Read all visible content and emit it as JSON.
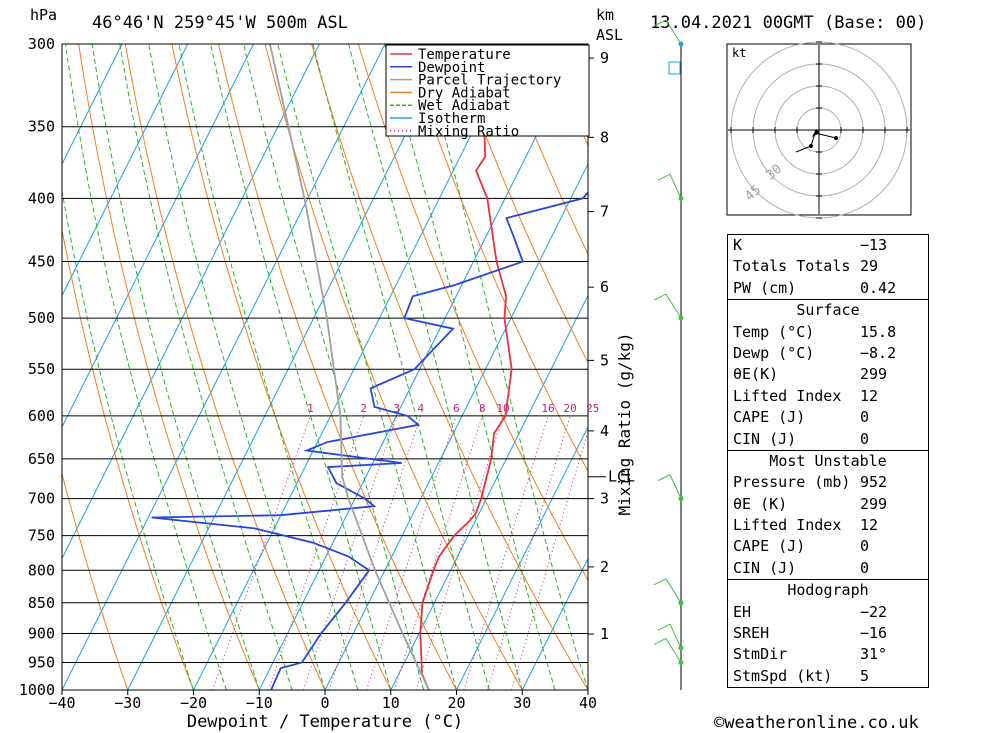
{
  "header": {
    "pressure_unit": "hPa",
    "location": "46°46'N  259°45'W  500m  ASL",
    "km_label": "km",
    "asl_label": "ASL",
    "datetime": "13.04.2021  00GMT  (Base: 00)"
  },
  "footer": {
    "copyright": "©weatheronline.co.uk"
  },
  "chart_data": {
    "type": "line",
    "title": "",
    "xlabel": "Dewpoint / Temperature (°C)",
    "ylabel": "hPa",
    "secondary_ylabel": "Mixing Ratio (g/kg)",
    "x_ticks": [
      "-40",
      "-30",
      "-20",
      "-10",
      "0",
      "10",
      "20",
      "30",
      "40"
    ],
    "xlim": [
      -40,
      40
    ],
    "pressure_levels": [
      300,
      350,
      400,
      450,
      500,
      550,
      600,
      650,
      700,
      750,
      800,
      850,
      900,
      950,
      1000
    ],
    "ylim": [
      1000,
      300
    ],
    "y_scale": "log",
    "height_km_ticks": [
      {
        "km": "1",
        "p": 901
      },
      {
        "km": "2",
        "p": 795
      },
      {
        "km": "3",
        "p": 700
      },
      {
        "km": "4",
        "p": 617
      },
      {
        "km": "5",
        "p": 541
      },
      {
        "km": "6",
        "p": 472
      },
      {
        "km": "7",
        "p": 410
      },
      {
        "km": "8",
        "p": 357
      },
      {
        "km": "9",
        "p": 308
      }
    ],
    "lcl_label": "LCL",
    "lcl_pressure": 672,
    "mixing_ratio_labels": [
      "1",
      "2",
      "3",
      "4",
      "6",
      "8",
      "10",
      "16",
      "20",
      "25"
    ],
    "legend": [
      {
        "name": "Temperature",
        "color": "#e8323c",
        "style": "solid"
      },
      {
        "name": "Dewpoint",
        "color": "#2846dc",
        "style": "solid"
      },
      {
        "name": "Parcel Trajectory",
        "color": "#a0a0a0",
        "style": "solid"
      },
      {
        "name": "Dry Adiabat",
        "color": "#f08020",
        "style": "solid"
      },
      {
        "name": "Wet Adiabat",
        "color": "#28b428",
        "style": "dashed"
      },
      {
        "name": "Isotherm",
        "color": "#1ea0e6",
        "style": "solid"
      },
      {
        "name": "Mixing Ratio",
        "color": "#c81e82",
        "style": "dotted"
      }
    ],
    "legend_position": "top-right",
    "series": [
      {
        "name": "Temperature",
        "color": "#e8323c",
        "points": [
          [
            1000,
            15.8
          ],
          [
            970,
            13.5
          ],
          [
            950,
            12.6
          ],
          [
            900,
            10.2
          ],
          [
            850,
            8.2
          ],
          [
            800,
            7.4
          ],
          [
            780,
            7.2
          ],
          [
            750,
            7.9
          ],
          [
            730,
            9.1
          ],
          [
            720,
            9.5
          ],
          [
            700,
            9.2
          ],
          [
            650,
            7.7
          ],
          [
            620,
            6.2
          ],
          [
            600,
            6.6
          ],
          [
            550,
            4.0
          ],
          [
            500,
            -1.0
          ],
          [
            480,
            -2.4
          ],
          [
            450,
            -6.5
          ],
          [
            400,
            -12.7
          ],
          [
            380,
            -16.5
          ],
          [
            370,
            -16.2
          ],
          [
            350,
            -18.6
          ],
          [
            320,
            -23.6
          ],
          [
            300,
            -27.0
          ]
        ]
      },
      {
        "name": "Dewpoint",
        "color": "#2846dc",
        "points": [
          [
            1000,
            -8.2
          ],
          [
            960,
            -8.4
          ],
          [
            950,
            -5.6
          ],
          [
            900,
            -4.9
          ],
          [
            850,
            -3.5
          ],
          [
            800,
            -2.4
          ],
          [
            780,
            -6.5
          ],
          [
            760,
            -13.0
          ],
          [
            740,
            -23.0
          ],
          [
            725,
            -39.5
          ],
          [
            722,
            -20.0
          ],
          [
            710,
            -6.5
          ],
          [
            700,
            -8.5
          ],
          [
            680,
            -14.0
          ],
          [
            660,
            -16.5
          ],
          [
            655,
            -5.6
          ],
          [
            640,
            -21.0
          ],
          [
            630,
            -18.5
          ],
          [
            610,
            -6.0
          ],
          [
            600,
            -8.3
          ],
          [
            590,
            -14.0
          ],
          [
            570,
            -16.0
          ],
          [
            550,
            -10.8
          ],
          [
            510,
            -8.0
          ],
          [
            500,
            -16.2
          ],
          [
            480,
            -16.6
          ],
          [
            470,
            -11.0
          ],
          [
            450,
            -2.5
          ],
          [
            430,
            -5.7
          ],
          [
            415,
            -8.3
          ],
          [
            400,
            1.8
          ],
          [
            380,
            3.5
          ],
          [
            370,
            6.0
          ],
          [
            350,
            4.9
          ],
          [
            320,
            -3.6
          ],
          [
            300,
            -11.0
          ]
        ]
      },
      {
        "name": "Parcel Trajectory",
        "color": "#a0a0a0",
        "points": [
          [
            1000,
            15.8
          ],
          [
            900,
            7.5
          ],
          [
            800,
            -1.5
          ],
          [
            700,
            -11.0
          ],
          [
            672,
            -13.6
          ],
          [
            600,
            -18.5
          ],
          [
            500,
            -28.0
          ],
          [
            400,
            -40.5
          ],
          [
            300,
            -57.5
          ]
        ]
      }
    ]
  },
  "hodograph": {
    "unit": "kt",
    "ring_labels": [
      "30",
      "45"
    ]
  },
  "wind_barbs_label": "wind barbs",
  "indices": {
    "general": [
      {
        "label": "K",
        "value": "-13"
      },
      {
        "label": "Totals Totals",
        "value": "29"
      },
      {
        "label": "PW (cm)",
        "value": "0.42"
      }
    ],
    "surface": {
      "title": "Surface",
      "rows": [
        {
          "label": "Temp (°C)",
          "value": "15.8"
        },
        {
          "label": "Dewp (°C)",
          "value": "-8.2"
        },
        {
          "label": "θE(K)",
          "value": "299"
        },
        {
          "label": "Lifted Index",
          "value": "12"
        },
        {
          "label": "CAPE (J)",
          "value": "0"
        },
        {
          "label": "CIN (J)",
          "value": "0"
        }
      ]
    },
    "most_unstable": {
      "title": "Most Unstable",
      "rows": [
        {
          "label": "Pressure (mb)",
          "value": "952"
        },
        {
          "label": "θE (K)",
          "value": "299"
        },
        {
          "label": "Lifted Index",
          "value": "12"
        },
        {
          "label": "CAPE (J)",
          "value": "0"
        },
        {
          "label": "CIN (J)",
          "value": "0"
        }
      ]
    },
    "hodograph": {
      "title": "Hodograph",
      "rows": [
        {
          "label": "EH",
          "value": "-22"
        },
        {
          "label": "SREH",
          "value": "-16"
        },
        {
          "label": "StmDir",
          "value": "31°"
        },
        {
          "label": "StmSpd (kt)",
          "value": "5"
        }
      ]
    }
  }
}
